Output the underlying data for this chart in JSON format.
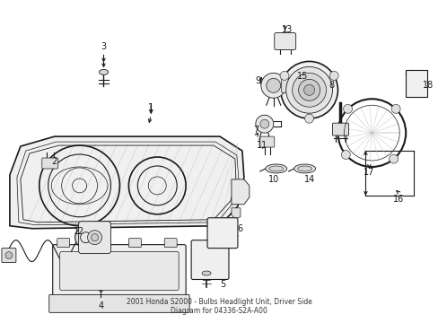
{
  "bg_color": "#ffffff",
  "line_color": "#1a1a1a",
  "fig_width": 4.89,
  "fig_height": 3.6,
  "dpi": 100,
  "title": "2001 Honda S2000 - Bulbs Headlight Unit, Driver Side\nDiagram for 04336-S2A-A00"
}
